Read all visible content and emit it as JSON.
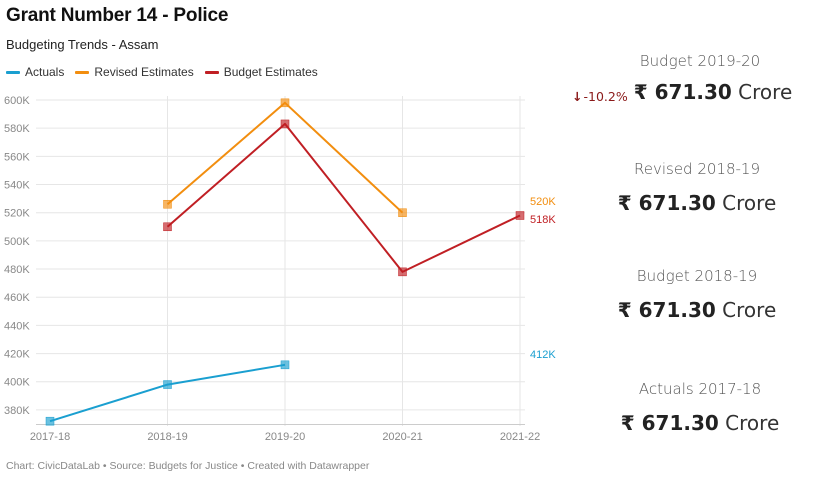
{
  "title": "Grant Number 14 - Police",
  "subtitle": "Budgeting Trends - Assam",
  "footer": "Chart: CivicDataLab • Source: Budgets for Justice • Created with Datawrapper",
  "colors": {
    "actuals": "#1a9fd0",
    "revised": "#f28e0f",
    "budget": "#c01f24",
    "grid": "#e6e6e6",
    "change_down": "#8b1a1a"
  },
  "chart_data": {
    "type": "line",
    "categories": [
      "2017-18",
      "2018-19",
      "2019-20",
      "2020-21",
      "2021-22"
    ],
    "ylim": [
      370000,
      600000
    ],
    "yticks": [
      {
        "value": 380000,
        "label": "380K"
      },
      {
        "value": 400000,
        "label": "400K"
      },
      {
        "value": 420000,
        "label": "420K"
      },
      {
        "value": 440000,
        "label": "440K"
      },
      {
        "value": 460000,
        "label": "460K"
      },
      {
        "value": 480000,
        "label": "480K"
      },
      {
        "value": 500000,
        "label": "500K"
      },
      {
        "value": 520000,
        "label": "520K"
      },
      {
        "value": 540000,
        "label": "540K"
      },
      {
        "value": 560000,
        "label": "560K"
      },
      {
        "value": 580000,
        "label": "580K"
      },
      {
        "value": 600000,
        "label": "600K"
      }
    ],
    "legend_position": "top-left",
    "grid": true,
    "series": [
      {
        "name": "Actuals",
        "key": "actuals",
        "values": [
          372000,
          398000,
          412000,
          null,
          null
        ],
        "end_label": "412K"
      },
      {
        "name": "Revised Estimates",
        "key": "revised",
        "values": [
          null,
          526000,
          598000,
          520000,
          null
        ],
        "end_label": "520K"
      },
      {
        "name": "Budget Estimates",
        "key": "budget",
        "values": [
          null,
          510000,
          583000,
          478000,
          518000
        ],
        "end_label": "518K"
      }
    ]
  },
  "kpis": [
    {
      "label": "Budget 2019-20",
      "amount": "₹ 671.30",
      "unit": "Crore",
      "change": "-10.2%",
      "change_icon": "down-arrow-icon"
    },
    {
      "label": "Revised 2018-19",
      "amount": "₹ 671.30",
      "unit": "Crore"
    },
    {
      "label": "Budget 2018-19",
      "amount": "₹ 671.30",
      "unit": "Crore"
    },
    {
      "label": "Actuals 2017-18",
      "amount": "₹ 671.30",
      "unit": "Crore"
    }
  ]
}
